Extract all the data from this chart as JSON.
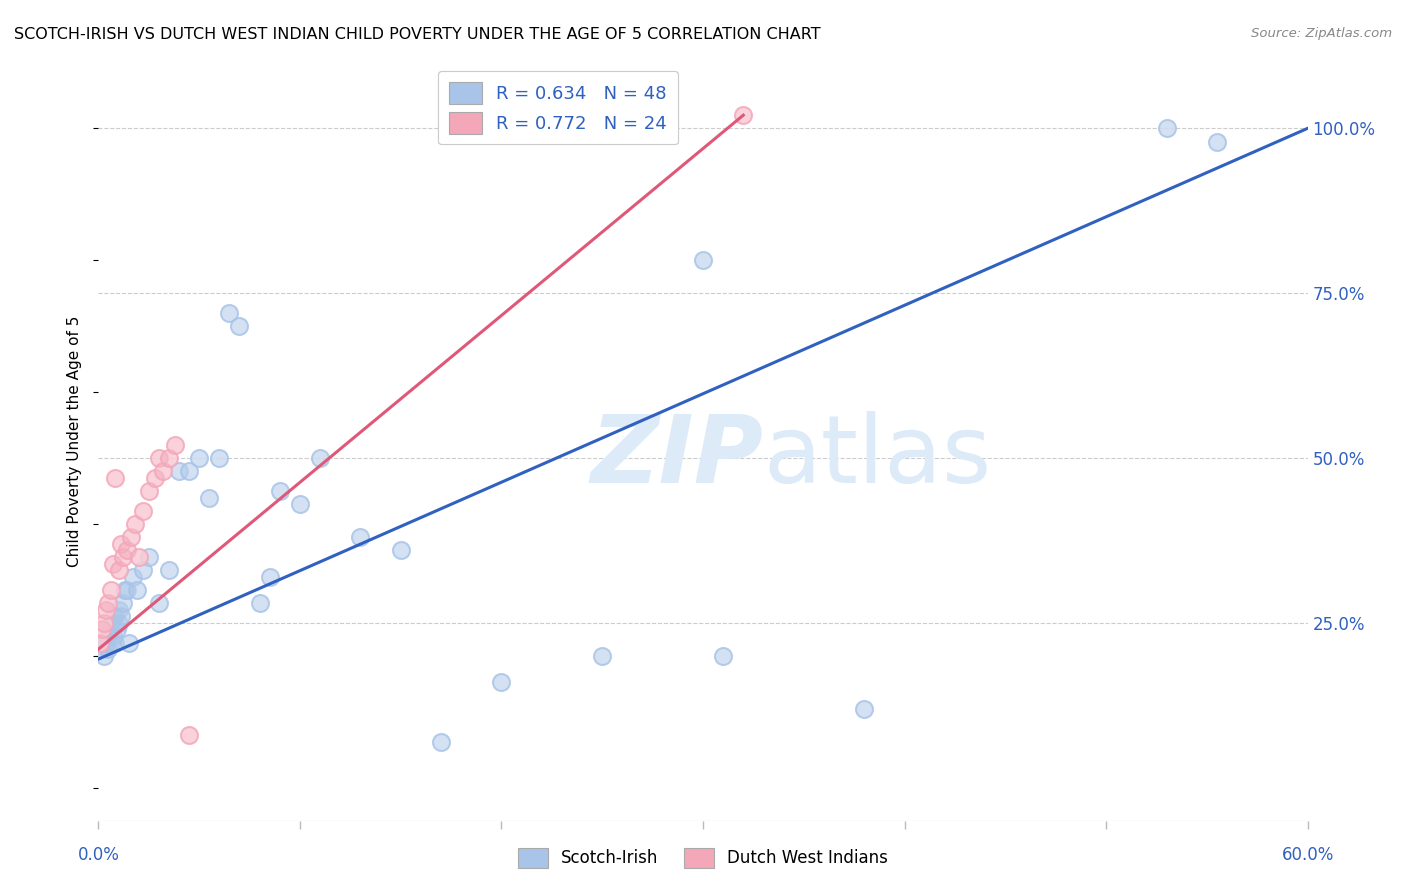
{
  "title": "SCOTCH-IRISH VS DUTCH WEST INDIAN CHILD POVERTY UNDER THE AGE OF 5 CORRELATION CHART",
  "source": "Source: ZipAtlas.com",
  "ylabel": "Child Poverty Under the Age of 5",
  "ytick_labels": [
    "25.0%",
    "50.0%",
    "75.0%",
    "100.0%"
  ],
  "ytick_values": [
    0.25,
    0.5,
    0.75,
    1.0
  ],
  "xlim": [
    0.0,
    0.6
  ],
  "ylim": [
    -0.05,
    1.1
  ],
  "legend_blue_label": "Scotch-Irish",
  "legend_pink_label": "Dutch West Indians",
  "R_blue": 0.634,
  "N_blue": 48,
  "R_pink": 0.772,
  "N_pink": 24,
  "blue_color": "#a8c4e8",
  "pink_color": "#f4a7b9",
  "blue_line_color": "#3060c0",
  "pink_line_color": "#e05878",
  "watermark_color": "#ddeaf8",
  "background_color": "#ffffff",
  "scotch_irish_x": [
    0.001,
    0.002,
    0.003,
    0.004,
    0.005,
    0.005,
    0.006,
    0.006,
    0.007,
    0.007,
    0.008,
    0.008,
    0.009,
    0.01,
    0.01,
    0.011,
    0.012,
    0.013,
    0.014,
    0.015,
    0.017,
    0.019,
    0.022,
    0.025,
    0.03,
    0.035,
    0.04,
    0.045,
    0.05,
    0.055,
    0.06,
    0.065,
    0.07,
    0.08,
    0.085,
    0.09,
    0.1,
    0.11,
    0.13,
    0.15,
    0.17,
    0.2,
    0.25,
    0.3,
    0.31,
    0.38,
    0.53,
    0.555
  ],
  "scotch_irish_y": [
    0.21,
    0.22,
    0.2,
    0.22,
    0.21,
    0.23,
    0.22,
    0.24,
    0.23,
    0.25,
    0.22,
    0.26,
    0.24,
    0.25,
    0.27,
    0.26,
    0.28,
    0.3,
    0.3,
    0.22,
    0.32,
    0.3,
    0.33,
    0.35,
    0.28,
    0.33,
    0.48,
    0.48,
    0.5,
    0.44,
    0.5,
    0.72,
    0.7,
    0.28,
    0.32,
    0.45,
    0.43,
    0.5,
    0.38,
    0.36,
    0.07,
    0.16,
    0.2,
    0.8,
    0.2,
    0.12,
    1.0,
    0.98
  ],
  "dutch_x": [
    0.001,
    0.002,
    0.003,
    0.004,
    0.005,
    0.006,
    0.007,
    0.008,
    0.01,
    0.011,
    0.012,
    0.014,
    0.016,
    0.018,
    0.02,
    0.022,
    0.025,
    0.028,
    0.03,
    0.032,
    0.035,
    0.038,
    0.045,
    0.32
  ],
  "dutch_y": [
    0.22,
    0.24,
    0.25,
    0.27,
    0.28,
    0.3,
    0.34,
    0.47,
    0.33,
    0.37,
    0.35,
    0.36,
    0.38,
    0.4,
    0.35,
    0.42,
    0.45,
    0.47,
    0.5,
    0.48,
    0.5,
    0.52,
    0.08,
    1.02
  ],
  "blue_line_x": [
    0.0,
    0.6
  ],
  "blue_line_y": [
    0.195,
    1.0
  ],
  "pink_line_x": [
    0.0,
    0.32
  ],
  "pink_line_y": [
    0.21,
    1.02
  ]
}
